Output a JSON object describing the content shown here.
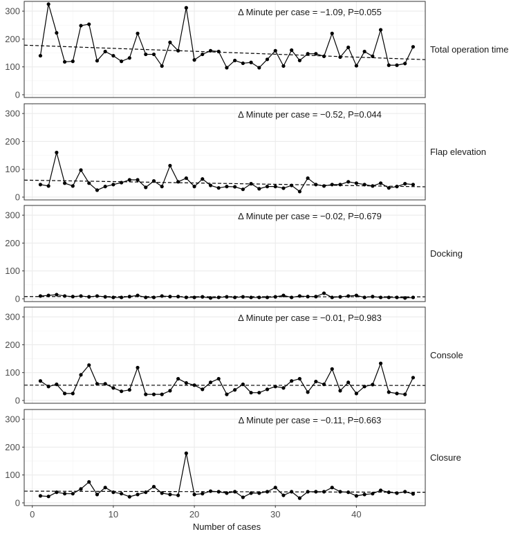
{
  "chart_data": {
    "type": "line",
    "xlabel": "Number of cases",
    "x_ticks": [
      0,
      10,
      20,
      30,
      40
    ],
    "x_range": [
      -1,
      48.5
    ],
    "y_ticks": [
      0,
      100,
      200,
      300
    ],
    "y_range": [
      -10,
      335
    ],
    "grid": true,
    "colors": {
      "line": "#000000",
      "grid": "#ebebeb",
      "panel_border": "#333333",
      "background": "#ffffff"
    },
    "x": [
      1,
      2,
      3,
      4,
      5,
      6,
      7,
      8,
      9,
      10,
      11,
      12,
      13,
      14,
      15,
      16,
      17,
      18,
      19,
      20,
      21,
      22,
      23,
      24,
      25,
      26,
      27,
      28,
      29,
      30,
      31,
      32,
      33,
      34,
      35,
      36,
      37,
      38,
      39,
      40,
      41,
      42,
      43,
      44,
      45,
      46,
      47
    ],
    "panels": [
      {
        "label": "Total operation time",
        "annotation": "Δ Minute per case = −1.09, P=0.055",
        "trend": [
          178,
          126
        ],
        "values": [
          140,
          325,
          222,
          118,
          120,
          248,
          253,
          122,
          155,
          140,
          120,
          132,
          220,
          145,
          145,
          103,
          188,
          158,
          312,
          125,
          145,
          158,
          155,
          97,
          123,
          113,
          116,
          97,
          127,
          158,
          103,
          160,
          123,
          147,
          147,
          138,
          220,
          135,
          170,
          104,
          155,
          138,
          233,
          106,
          106,
          112,
          172
        ]
      },
      {
        "label": "Flap elevation",
        "annotation": "Δ Minute per case = −0.52, P=0.044",
        "trend": [
          61,
          37
        ],
        "values": [
          45,
          40,
          160,
          50,
          40,
          97,
          50,
          25,
          38,
          45,
          52,
          62,
          62,
          35,
          58,
          38,
          113,
          55,
          68,
          38,
          65,
          42,
          33,
          38,
          37,
          28,
          48,
          30,
          38,
          38,
          32,
          42,
          20,
          68,
          45,
          40,
          45,
          45,
          55,
          50,
          45,
          40,
          50,
          33,
          38,
          48,
          45
        ]
      },
      {
        "label": "Docking",
        "annotation": "Δ Minute per case = −0.02, P=0.679",
        "trend": [
          8,
          7
        ],
        "values": [
          10,
          12,
          15,
          10,
          8,
          10,
          7,
          10,
          7,
          5,
          5,
          8,
          12,
          5,
          5,
          10,
          8,
          8,
          5,
          5,
          7,
          3,
          5,
          7,
          5,
          7,
          5,
          5,
          5,
          7,
          12,
          5,
          10,
          8,
          8,
          20,
          5,
          7,
          10,
          12,
          5,
          8,
          5,
          5,
          5,
          3,
          5
        ]
      },
      {
        "label": "Console",
        "annotation": "Δ Minute per case = −0.01, P=0.983",
        "trend": [
          55,
          54
        ],
        "values": [
          70,
          50,
          58,
          25,
          25,
          92,
          127,
          60,
          60,
          45,
          33,
          38,
          118,
          22,
          22,
          22,
          35,
          78,
          63,
          55,
          40,
          65,
          78,
          22,
          38,
          58,
          28,
          28,
          40,
          50,
          45,
          70,
          78,
          30,
          68,
          58,
          113,
          35,
          65,
          25,
          50,
          57,
          133,
          30,
          25,
          22,
          82
        ]
      },
      {
        "label": "Closure",
        "annotation": "Δ Minute per case = −0.11, P=0.663",
        "trend": [
          42,
          38
        ],
        "values": [
          25,
          23,
          38,
          33,
          33,
          50,
          75,
          30,
          55,
          38,
          33,
          22,
          30,
          38,
          58,
          35,
          30,
          27,
          178,
          30,
          33,
          42,
          40,
          35,
          40,
          20,
          35,
          35,
          40,
          55,
          27,
          40,
          17,
          40,
          40,
          40,
          55,
          40,
          38,
          25,
          30,
          33,
          45,
          38,
          35,
          40,
          32
        ]
      }
    ]
  }
}
